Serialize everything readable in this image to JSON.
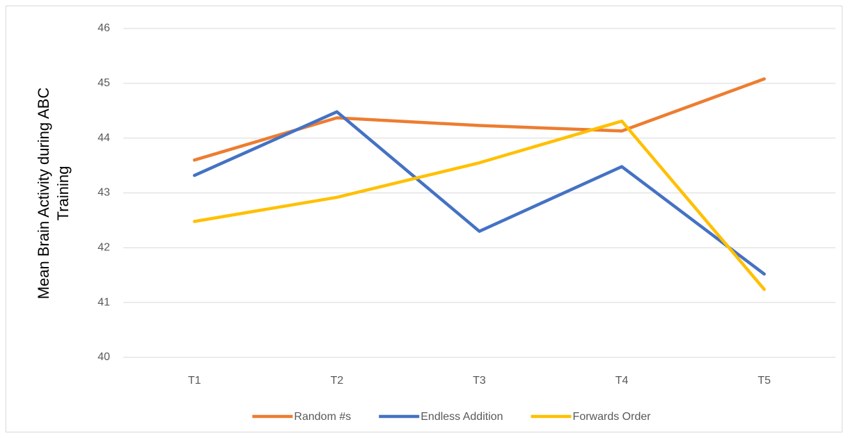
{
  "chart_data": {
    "type": "line",
    "y_label": [
      "Mean Brain Activity during ABC",
      "Training"
    ],
    "categories": [
      "T1",
      "T2",
      "T3",
      "T4",
      "T5"
    ],
    "series": [
      {
        "name": "Random #s",
        "color": "#ed7d31",
        "values": [
          43.6,
          44.37,
          44.23,
          44.13,
          45.08
        ]
      },
      {
        "name": "Endless Addition",
        "color": "#4472c4",
        "values": [
          43.32,
          44.48,
          42.3,
          43.48,
          41.52
        ]
      },
      {
        "name": "Forwards Order",
        "color": "#ffc000",
        "values": [
          42.48,
          42.92,
          43.55,
          44.31,
          41.24
        ]
      }
    ],
    "ylim": [
      40,
      46
    ],
    "yticks": [
      40,
      41,
      42,
      43,
      44,
      45,
      46
    ],
    "grid": true,
    "legend": "bottom"
  }
}
